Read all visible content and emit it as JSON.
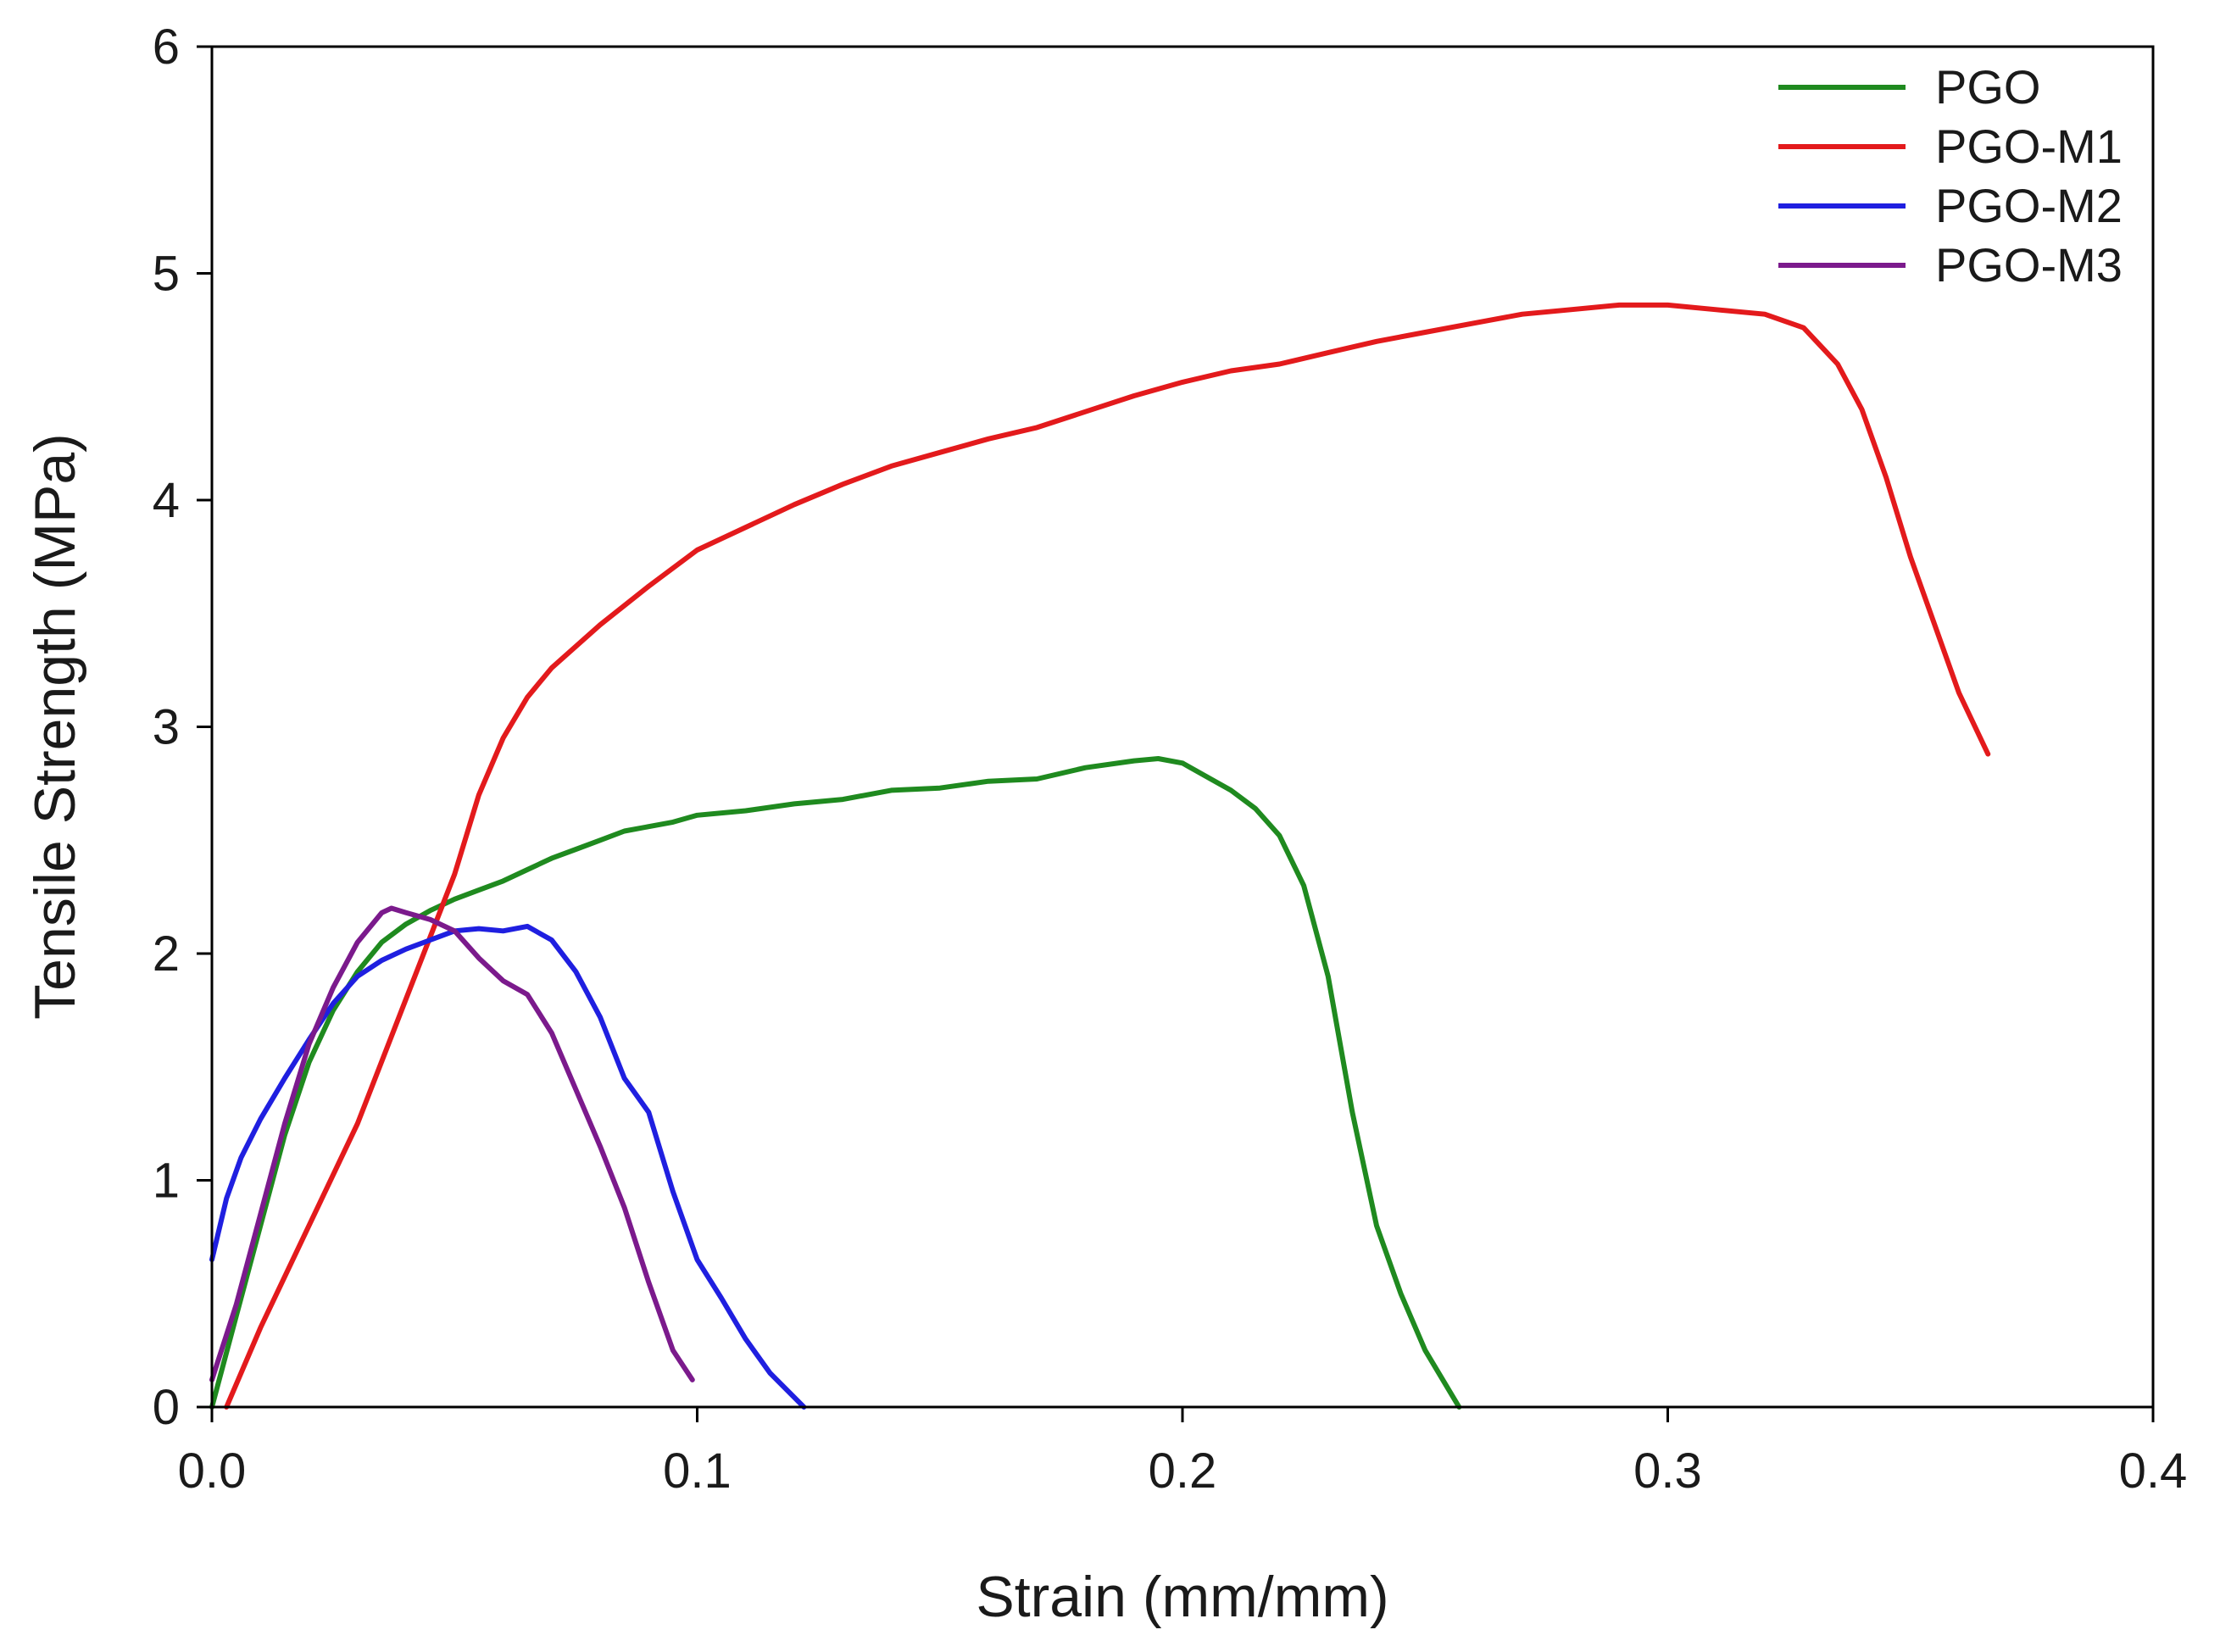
{
  "chart_data": {
    "type": "line",
    "title": "",
    "xlabel": "Strain (mm/mm)",
    "ylabel": "Tensile Strength (MPa)",
    "xlim": [
      0,
      0.4
    ],
    "ylim": [
      0,
      6
    ],
    "xticks": [
      0.0,
      0.1,
      0.2,
      0.3,
      0.4
    ],
    "xtick_labels": [
      "0.0",
      "0.1",
      "0.2",
      "0.3",
      "0.4"
    ],
    "yticks": [
      0,
      1,
      2,
      3,
      4,
      5,
      6
    ],
    "ytick_labels": [
      "0",
      "1",
      "2",
      "3",
      "4",
      "5",
      "6"
    ],
    "grid": false,
    "legend_position": "top-right",
    "series": [
      {
        "name": "PGO",
        "color": "#1f8a1f",
        "x": [
          0.0,
          0.005,
          0.01,
          0.015,
          0.02,
          0.025,
          0.03,
          0.035,
          0.04,
          0.045,
          0.05,
          0.055,
          0.06,
          0.065,
          0.07,
          0.075,
          0.08,
          0.085,
          0.09,
          0.095,
          0.1,
          0.11,
          0.12,
          0.13,
          0.14,
          0.15,
          0.16,
          0.17,
          0.18,
          0.19,
          0.195,
          0.2,
          0.205,
          0.21,
          0.215,
          0.22,
          0.225,
          0.23,
          0.235,
          0.24,
          0.245,
          0.25,
          0.257
        ],
        "y": [
          0.0,
          0.4,
          0.8,
          1.2,
          1.52,
          1.75,
          1.92,
          2.05,
          2.13,
          2.19,
          2.24,
          2.28,
          2.32,
          2.37,
          2.42,
          2.46,
          2.5,
          2.54,
          2.56,
          2.58,
          2.61,
          2.63,
          2.66,
          2.68,
          2.72,
          2.73,
          2.76,
          2.77,
          2.82,
          2.85,
          2.86,
          2.84,
          2.78,
          2.72,
          2.64,
          2.52,
          2.3,
          1.9,
          1.3,
          0.8,
          0.5,
          0.25,
          0.0
        ]
      },
      {
        "name": "PGO-M1",
        "color": "#e31a1c",
        "x": [
          0.003,
          0.01,
          0.02,
          0.03,
          0.04,
          0.05,
          0.055,
          0.06,
          0.065,
          0.07,
          0.08,
          0.09,
          0.1,
          0.11,
          0.12,
          0.13,
          0.14,
          0.15,
          0.16,
          0.17,
          0.18,
          0.19,
          0.2,
          0.21,
          0.22,
          0.23,
          0.24,
          0.25,
          0.26,
          0.27,
          0.28,
          0.29,
          0.3,
          0.31,
          0.32,
          0.328,
          0.335,
          0.34,
          0.345,
          0.35,
          0.355,
          0.36,
          0.366
        ],
        "y": [
          0.0,
          0.35,
          0.8,
          1.25,
          1.8,
          2.35,
          2.7,
          2.95,
          3.13,
          3.26,
          3.45,
          3.62,
          3.78,
          3.88,
          3.98,
          4.07,
          4.15,
          4.21,
          4.27,
          4.32,
          4.39,
          4.46,
          4.52,
          4.57,
          4.6,
          4.65,
          4.7,
          4.74,
          4.78,
          4.82,
          4.84,
          4.86,
          4.86,
          4.84,
          4.82,
          4.76,
          4.6,
          4.4,
          4.1,
          3.75,
          3.45,
          3.15,
          2.88
        ]
      },
      {
        "name": "PGO-M2",
        "color": "#1f1fe0",
        "x": [
          0.0,
          0.003,
          0.006,
          0.01,
          0.015,
          0.02,
          0.025,
          0.03,
          0.035,
          0.04,
          0.045,
          0.05,
          0.055,
          0.06,
          0.065,
          0.07,
          0.075,
          0.08,
          0.085,
          0.09,
          0.095,
          0.1,
          0.105,
          0.11,
          0.115,
          0.122
        ],
        "y": [
          0.65,
          0.92,
          1.1,
          1.27,
          1.45,
          1.62,
          1.78,
          1.9,
          1.97,
          2.02,
          2.06,
          2.1,
          2.11,
          2.1,
          2.12,
          2.06,
          1.92,
          1.72,
          1.45,
          1.3,
          0.95,
          0.65,
          0.48,
          0.3,
          0.15,
          0.0
        ]
      },
      {
        "name": "PGO-M3",
        "color": "#7b1a8c",
        "x": [
          0.0,
          0.005,
          0.01,
          0.015,
          0.02,
          0.025,
          0.03,
          0.035,
          0.037,
          0.04,
          0.045,
          0.05,
          0.055,
          0.06,
          0.065,
          0.07,
          0.075,
          0.08,
          0.085,
          0.09,
          0.095,
          0.099
        ],
        "y": [
          0.12,
          0.45,
          0.85,
          1.25,
          1.6,
          1.85,
          2.05,
          2.18,
          2.2,
          2.18,
          2.15,
          2.1,
          1.98,
          1.88,
          1.82,
          1.65,
          1.4,
          1.15,
          0.88,
          0.55,
          0.25,
          0.12
        ]
      }
    ]
  }
}
